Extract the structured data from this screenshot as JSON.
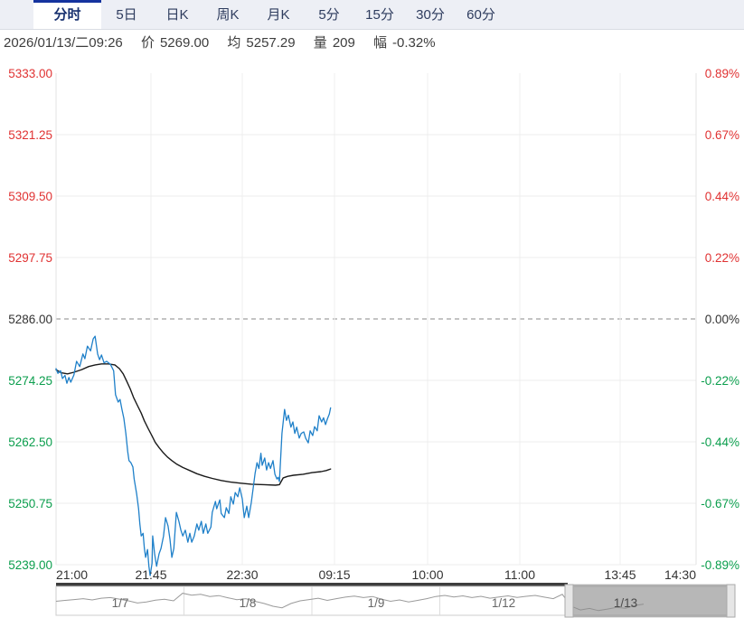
{
  "tabbar": {
    "tabs": [
      {
        "id": "minute",
        "label": "分时",
        "active": true
      },
      {
        "id": "5day",
        "label": "5日",
        "active": false
      },
      {
        "id": "daily-k",
        "label": "日K",
        "active": false
      },
      {
        "id": "weekly-k",
        "label": "周K",
        "active": false
      },
      {
        "id": "monthly-k",
        "label": "月K",
        "active": false
      },
      {
        "id": "5min",
        "label": "5分",
        "active": false
      },
      {
        "id": "15min",
        "label": "15分",
        "active": false
      },
      {
        "id": "30min",
        "label": "30分",
        "active": false
      },
      {
        "id": "60min",
        "label": "60分",
        "active": false
      }
    ]
  },
  "infobar": {
    "datetime": "2026/01/13/二09:26",
    "price_label": "价",
    "price": "5269.00",
    "avg_label": "均",
    "avg": "5257.29",
    "volume_label": "量",
    "volume": "209",
    "change_label": "幅",
    "change": "-0.32%"
  },
  "chart_data": {
    "type": "line",
    "title": "minute price chart 2026/01/13",
    "baseline_value": 5286.0,
    "ylim": [
      5239.0,
      5333.0
    ],
    "colors": {
      "up": "#e03232",
      "down": "#0b9e4d",
      "flat": "#333333",
      "grid": "#ededed",
      "baseline": "#8a8a8a",
      "price_line": "#1f80c9",
      "avg_line": "#1a1a1a"
    },
    "price_levels": [
      {
        "value": 5333.0,
        "label": "5333.00",
        "pct": "0.89%",
        "tone": "up"
      },
      {
        "value": 5321.25,
        "label": "5321.25",
        "pct": "0.67%",
        "tone": "up"
      },
      {
        "value": 5309.5,
        "label": "5309.50",
        "pct": "0.44%",
        "tone": "up"
      },
      {
        "value": 5297.75,
        "label": "5297.75",
        "pct": "0.22%",
        "tone": "up"
      },
      {
        "value": 5286.0,
        "label": "5286.00",
        "pct": "0.00%",
        "tone": "flat"
      },
      {
        "value": 5274.25,
        "label": "5274.25",
        "pct": "-0.22%",
        "tone": "down"
      },
      {
        "value": 5262.5,
        "label": "5262.50",
        "pct": "-0.44%",
        "tone": "down"
      },
      {
        "value": 5250.75,
        "label": "5250.75",
        "pct": "-0.67%",
        "tone": "down"
      },
      {
        "value": 5239.0,
        "label": "5239.00",
        "pct": "-0.89%",
        "tone": "down"
      }
    ],
    "x_ticks": [
      "21:00",
      "21:45",
      "22:30",
      "09:15",
      "10:00",
      "11:00",
      "13:45",
      "14:30"
    ],
    "series": [
      {
        "name": "avg",
        "color": "#1a1a1a",
        "width": 1.4,
        "points": [
          [
            0.0,
            5276.3
          ],
          [
            0.008,
            5275.7
          ],
          [
            0.018,
            5275.5
          ],
          [
            0.028,
            5275.8
          ],
          [
            0.04,
            5276.3
          ],
          [
            0.051,
            5276.9
          ],
          [
            0.061,
            5277.2
          ],
          [
            0.071,
            5277.4
          ],
          [
            0.082,
            5277.4
          ],
          [
            0.092,
            5277.2
          ],
          [
            0.099,
            5276.5
          ],
          [
            0.105,
            5275.5
          ],
          [
            0.11,
            5274.2
          ],
          [
            0.116,
            5272.6
          ],
          [
            0.121,
            5271.0
          ],
          [
            0.127,
            5269.5
          ],
          [
            0.133,
            5268.0
          ],
          [
            0.138,
            5266.5
          ],
          [
            0.144,
            5265.0
          ],
          [
            0.15,
            5263.6
          ],
          [
            0.155,
            5262.4
          ],
          [
            0.161,
            5261.4
          ],
          [
            0.167,
            5260.5
          ],
          [
            0.174,
            5259.6
          ],
          [
            0.181,
            5258.9
          ],
          [
            0.189,
            5258.2
          ],
          [
            0.198,
            5257.6
          ],
          [
            0.209,
            5257.0
          ],
          [
            0.22,
            5256.4
          ],
          [
            0.232,
            5255.9
          ],
          [
            0.244,
            5255.5
          ],
          [
            0.258,
            5255.1
          ],
          [
            0.273,
            5254.8
          ],
          [
            0.287,
            5254.6
          ],
          [
            0.305,
            5254.4
          ],
          [
            0.325,
            5254.3
          ],
          [
            0.343,
            5254.2
          ],
          [
            0.349,
            5254.3
          ],
          [
            0.355,
            5255.6
          ],
          [
            0.362,
            5255.9
          ],
          [
            0.371,
            5256.1
          ],
          [
            0.386,
            5256.3
          ],
          [
            0.4,
            5256.6
          ],
          [
            0.414,
            5256.8
          ],
          [
            0.422,
            5257.0
          ],
          [
            0.429,
            5257.3
          ]
        ]
      },
      {
        "name": "price",
        "color": "#1f80c9",
        "width": 1.3,
        "points": [
          [
            0.0,
            5276.5
          ],
          [
            0.003,
            5275.6
          ],
          [
            0.007,
            5276.1
          ],
          [
            0.01,
            5274.6
          ],
          [
            0.014,
            5275.2
          ],
          [
            0.017,
            5273.7
          ],
          [
            0.02,
            5274.8
          ],
          [
            0.023,
            5273.9
          ],
          [
            0.028,
            5275.3
          ],
          [
            0.032,
            5277.9
          ],
          [
            0.037,
            5276.9
          ],
          [
            0.042,
            5279.3
          ],
          [
            0.045,
            5278.4
          ],
          [
            0.049,
            5280.8
          ],
          [
            0.054,
            5279.9
          ],
          [
            0.058,
            5282.2
          ],
          [
            0.061,
            5282.7
          ],
          [
            0.065,
            5279.3
          ],
          [
            0.068,
            5278.2
          ],
          [
            0.071,
            5279.1
          ],
          [
            0.075,
            5277.6
          ],
          [
            0.079,
            5277.9
          ],
          [
            0.085,
            5277.3
          ],
          [
            0.09,
            5276.1
          ],
          [
            0.093,
            5271.5
          ],
          [
            0.097,
            5270.1
          ],
          [
            0.1,
            5270.6
          ],
          [
            0.103,
            5268.7
          ],
          [
            0.106,
            5267.0
          ],
          [
            0.109,
            5264.1
          ],
          [
            0.112,
            5260.6
          ],
          [
            0.114,
            5258.9
          ],
          [
            0.117,
            5258.5
          ],
          [
            0.12,
            5257.7
          ],
          [
            0.122,
            5255.4
          ],
          [
            0.126,
            5252.5
          ],
          [
            0.129,
            5249.7
          ],
          [
            0.131,
            5246.8
          ],
          [
            0.133,
            5244.5
          ],
          [
            0.136,
            5245.0
          ],
          [
            0.138,
            5242.1
          ],
          [
            0.14,
            5240.4
          ],
          [
            0.143,
            5241.9
          ],
          [
            0.145,
            5238.7
          ],
          [
            0.147,
            5236.9
          ],
          [
            0.15,
            5239.3
          ],
          [
            0.151,
            5244.5
          ],
          [
            0.154,
            5241.1
          ],
          [
            0.157,
            5238.7
          ],
          [
            0.161,
            5241.1
          ],
          [
            0.164,
            5242.1
          ],
          [
            0.168,
            5244.5
          ],
          [
            0.171,
            5248.0
          ],
          [
            0.175,
            5246.4
          ],
          [
            0.178,
            5243.9
          ],
          [
            0.181,
            5240.4
          ],
          [
            0.184,
            5242.1
          ],
          [
            0.188,
            5249.0
          ],
          [
            0.192,
            5247.3
          ],
          [
            0.195,
            5245.6
          ],
          [
            0.198,
            5244.5
          ],
          [
            0.202,
            5245.6
          ],
          [
            0.206,
            5243.3
          ],
          [
            0.209,
            5245.0
          ],
          [
            0.212,
            5243.3
          ],
          [
            0.216,
            5244.5
          ],
          [
            0.22,
            5246.8
          ],
          [
            0.223,
            5245.6
          ],
          [
            0.227,
            5247.3
          ],
          [
            0.23,
            5245.0
          ],
          [
            0.234,
            5246.8
          ],
          [
            0.237,
            5245.0
          ],
          [
            0.242,
            5246.2
          ],
          [
            0.244,
            5249.0
          ],
          [
            0.249,
            5251.1
          ],
          [
            0.251,
            5249.7
          ],
          [
            0.256,
            5251.4
          ],
          [
            0.258,
            5248.8
          ],
          [
            0.263,
            5248.0
          ],
          [
            0.266,
            5249.9
          ],
          [
            0.27,
            5248.8
          ],
          [
            0.273,
            5252.0
          ],
          [
            0.277,
            5250.6
          ],
          [
            0.28,
            5252.8
          ],
          [
            0.284,
            5252.0
          ],
          [
            0.287,
            5253.7
          ],
          [
            0.291,
            5251.6
          ],
          [
            0.294,
            5248.0
          ],
          [
            0.298,
            5250.2
          ],
          [
            0.301,
            5248.0
          ],
          [
            0.305,
            5250.8
          ],
          [
            0.308,
            5253.7
          ],
          [
            0.311,
            5256.5
          ],
          [
            0.314,
            5258.5
          ],
          [
            0.317,
            5257.4
          ],
          [
            0.32,
            5260.3
          ],
          [
            0.322,
            5258.0
          ],
          [
            0.326,
            5259.4
          ],
          [
            0.329,
            5257.1
          ],
          [
            0.332,
            5258.5
          ],
          [
            0.335,
            5257.4
          ],
          [
            0.339,
            5258.9
          ],
          [
            0.342,
            5256.3
          ],
          [
            0.345,
            5255.4
          ],
          [
            0.347,
            5255.7
          ],
          [
            0.349,
            5254.9
          ],
          [
            0.353,
            5264.1
          ],
          [
            0.357,
            5268.7
          ],
          [
            0.36,
            5266.6
          ],
          [
            0.363,
            5267.6
          ],
          [
            0.367,
            5265.3
          ],
          [
            0.37,
            5266.3
          ],
          [
            0.373,
            5264.1
          ],
          [
            0.376,
            5265.3
          ],
          [
            0.38,
            5263.2
          ],
          [
            0.383,
            5264.1
          ],
          [
            0.387,
            5264.4
          ],
          [
            0.39,
            5263.2
          ],
          [
            0.394,
            5262.3
          ],
          [
            0.397,
            5264.6
          ],
          [
            0.401,
            5263.7
          ],
          [
            0.404,
            5265.4
          ],
          [
            0.408,
            5264.6
          ],
          [
            0.411,
            5267.5
          ],
          [
            0.415,
            5266.3
          ],
          [
            0.418,
            5267.1
          ],
          [
            0.421,
            5265.8
          ],
          [
            0.424,
            5266.9
          ],
          [
            0.427,
            5267.8
          ],
          [
            0.429,
            5269.0
          ]
        ]
      }
    ],
    "navigator": {
      "segments": [
        {
          "label": "1/7",
          "selected": false
        },
        {
          "label": "1/8",
          "selected": false
        },
        {
          "label": "1/9",
          "selected": false
        },
        {
          "label": "1/12",
          "selected": false
        },
        {
          "label": "1/13",
          "selected": true
        }
      ],
      "sparkline": [
        0.52,
        0.48,
        0.44,
        0.4,
        0.46,
        0.38,
        0.35,
        0.42,
        0.5,
        0.6,
        0.55,
        0.47,
        0.43,
        0.5,
        0.15,
        0.24,
        0.2,
        0.3,
        0.26,
        0.36,
        0.45,
        0.4,
        0.52,
        0.62,
        0.75,
        0.82,
        0.62,
        0.5,
        0.44,
        0.38,
        0.48,
        0.4,
        0.33,
        0.28,
        0.35,
        0.3,
        0.42,
        0.52,
        0.46,
        0.55,
        0.48,
        0.4,
        0.3,
        0.25,
        0.32,
        0.27,
        0.35,
        0.29,
        0.38,
        0.32,
        0.27,
        0.34,
        0.29,
        0.25,
        0.33,
        0.4,
        0.2,
        0.75,
        0.92,
        0.85,
        0.95,
        0.88,
        0.8,
        0.84,
        0.72,
        0.65
      ]
    }
  }
}
